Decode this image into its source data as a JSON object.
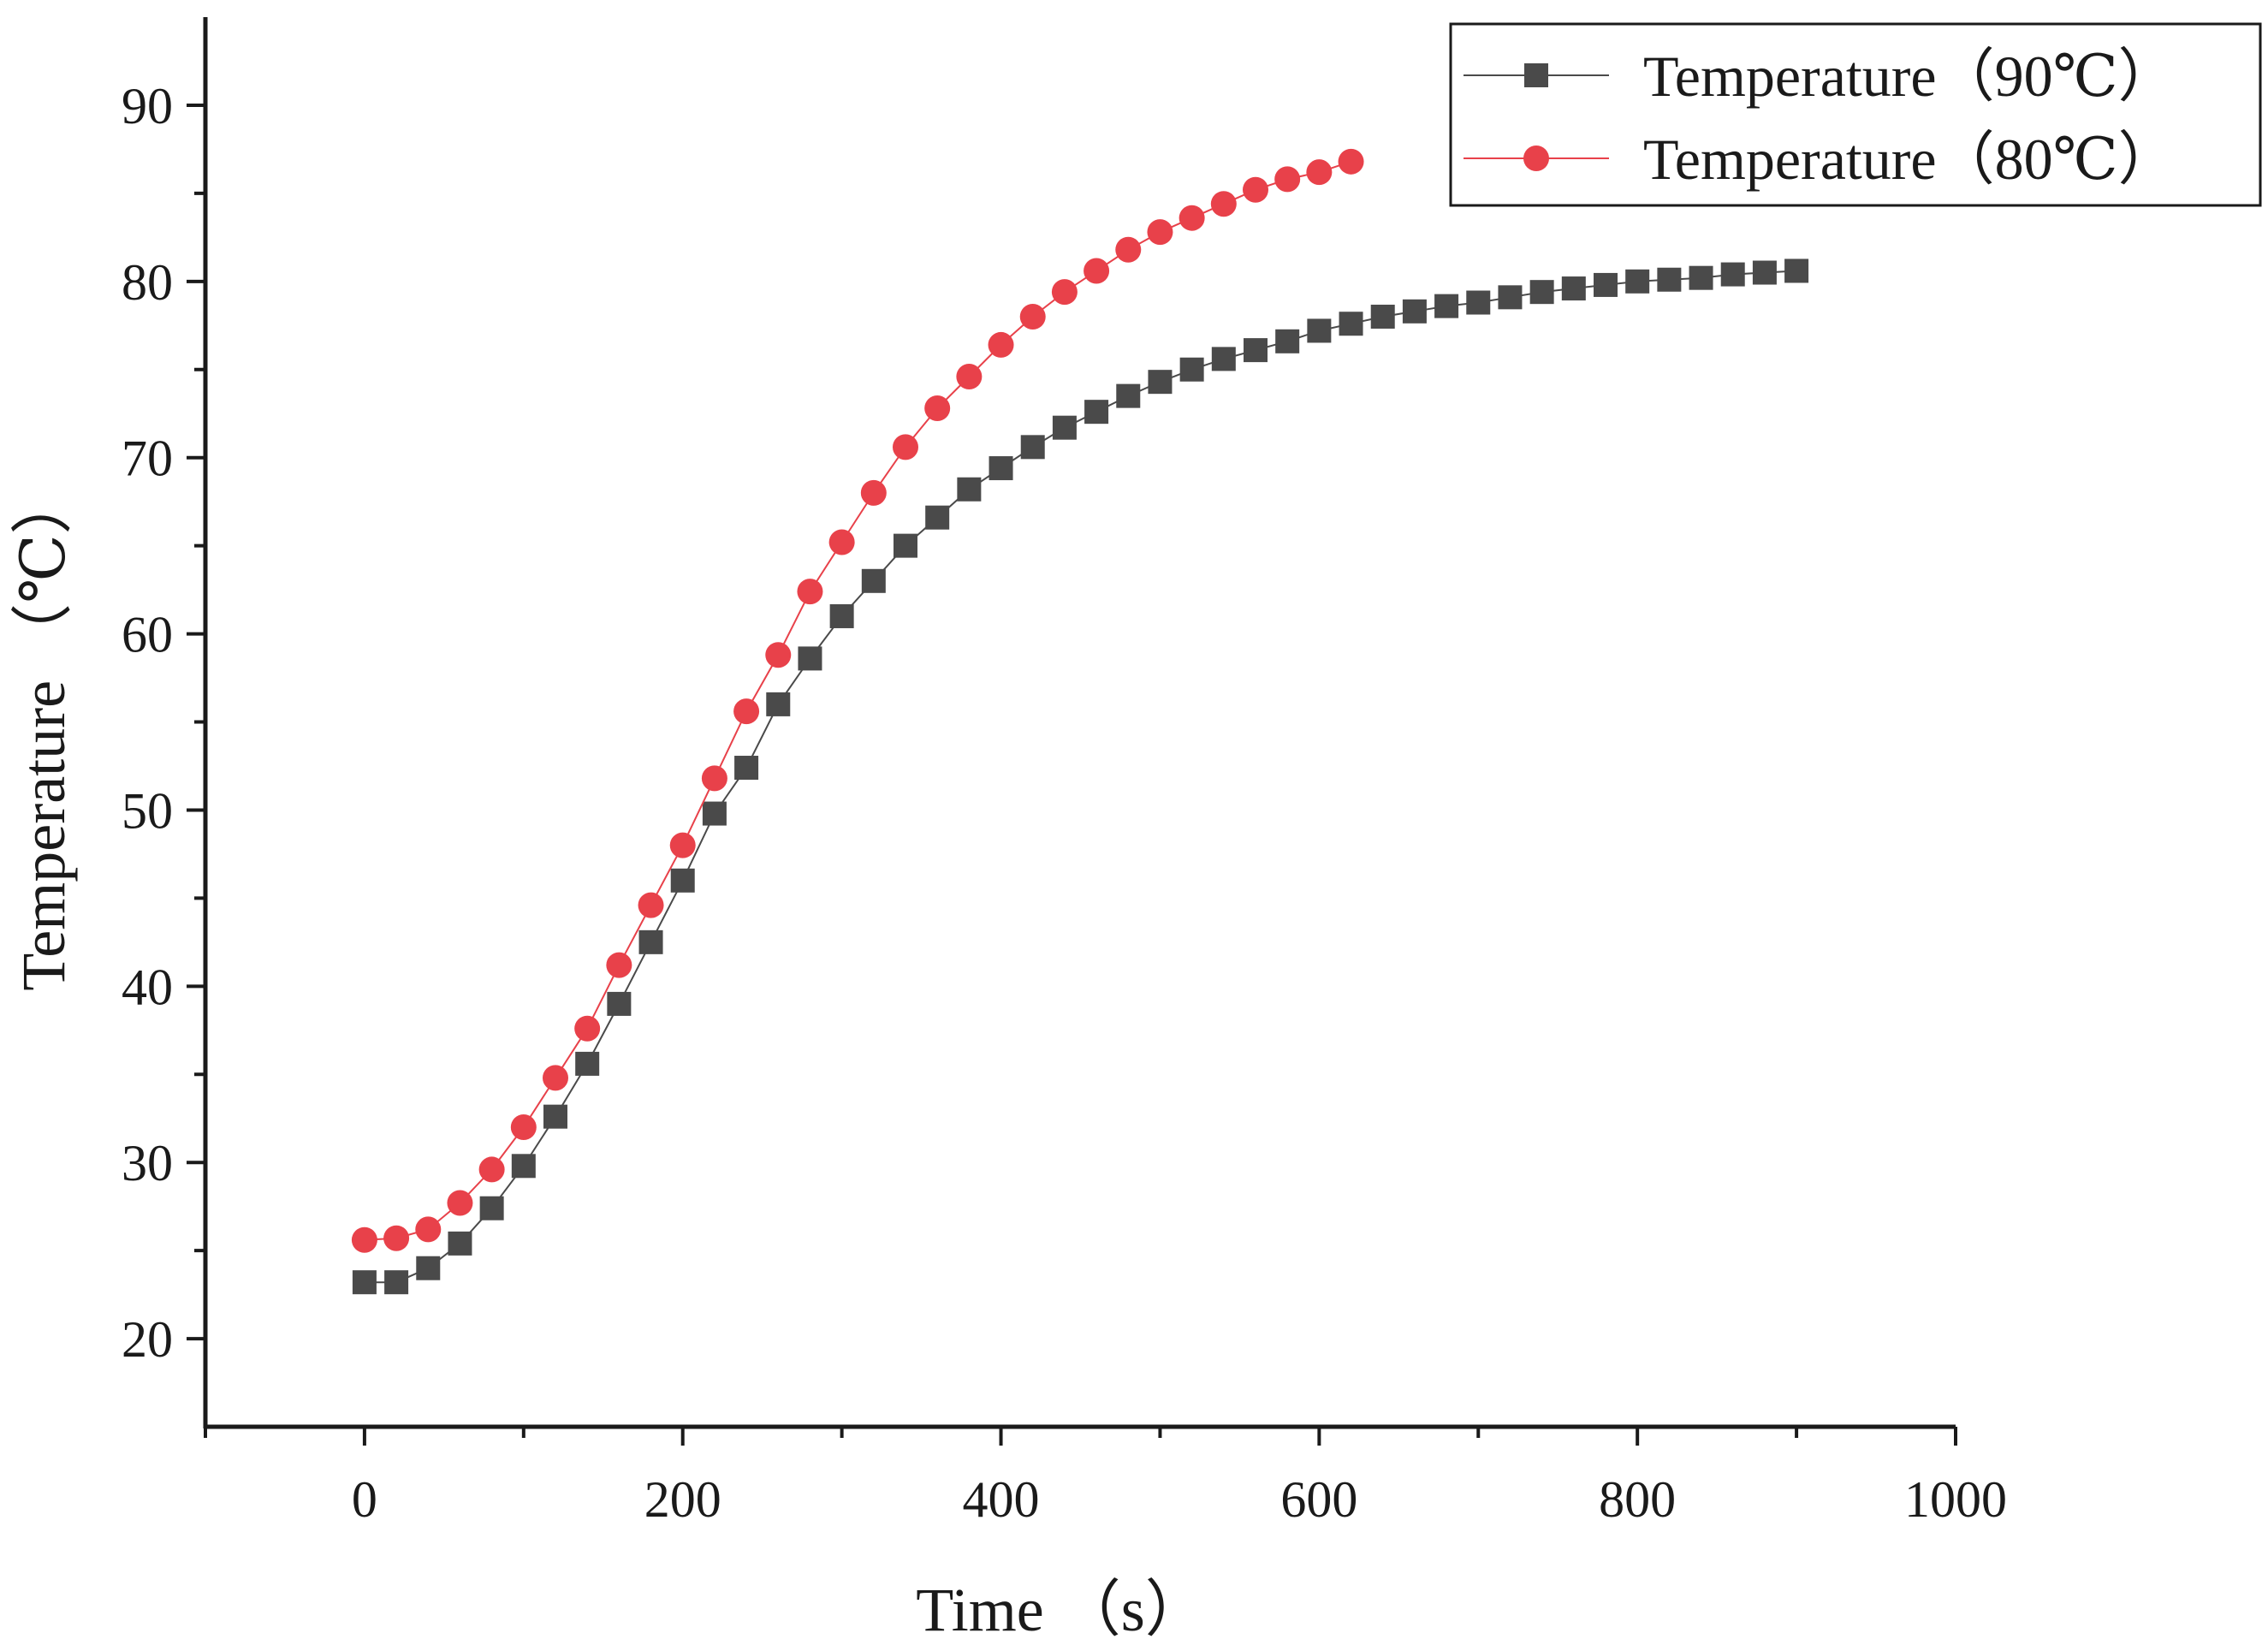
{
  "chart_data": {
    "type": "line",
    "title": "",
    "xlabel": "Time （s）",
    "ylabel": "Temperature （℃）",
    "xlim": [
      -100,
      1000
    ],
    "ylim": [
      15,
      95
    ],
    "x_ticks": [
      0,
      200,
      400,
      600,
      800,
      1000
    ],
    "y_ticks": [
      20,
      30,
      40,
      50,
      60,
      70,
      80,
      90
    ],
    "grid": false,
    "legend_position": "top-right",
    "series": [
      {
        "name": "Temperature（90℃）",
        "marker": "square",
        "color": "#4a4a4a",
        "x": [
          0,
          20,
          40,
          60,
          80,
          100,
          120,
          140,
          160,
          180,
          200,
          220,
          240,
          260,
          280,
          300,
          320,
          340,
          360,
          380,
          400,
          420,
          440,
          460,
          480,
          500,
          520,
          540,
          560,
          580,
          600,
          620,
          640,
          660,
          680,
          700,
          720,
          740,
          760,
          780,
          800,
          820,
          840,
          860,
          880,
          900
        ],
        "y": [
          23.2,
          23.2,
          24.0,
          25.4,
          27.4,
          29.8,
          32.6,
          35.6,
          39.0,
          42.5,
          46.0,
          49.8,
          52.4,
          56.0,
          58.6,
          61.0,
          63.0,
          65.0,
          66.6,
          68.2,
          69.4,
          70.6,
          71.7,
          72.6,
          73.5,
          74.3,
          75.0,
          75.6,
          76.1,
          76.6,
          77.2,
          77.6,
          78.0,
          78.3,
          78.6,
          78.8,
          79.1,
          79.4,
          79.6,
          79.8,
          80.0,
          80.1,
          80.2,
          80.4,
          80.5,
          80.6
        ]
      },
      {
        "name": "Temperature（80℃）",
        "marker": "circle",
        "color": "#e8414a",
        "x": [
          0,
          20,
          40,
          60,
          80,
          100,
          120,
          140,
          160,
          180,
          200,
          220,
          240,
          260,
          280,
          300,
          320,
          340,
          360,
          380,
          400,
          420,
          440,
          460,
          480,
          500,
          520,
          540,
          560,
          580,
          600,
          620
        ],
        "y": [
          25.6,
          25.7,
          26.2,
          27.7,
          29.6,
          32.0,
          34.8,
          37.6,
          41.2,
          44.6,
          48.0,
          51.8,
          55.6,
          58.8,
          62.4,
          65.2,
          68.0,
          70.6,
          72.8,
          74.6,
          76.4,
          78.0,
          79.4,
          80.6,
          81.8,
          82.8,
          83.6,
          84.4,
          85.2,
          85.8,
          86.2,
          86.8
        ]
      }
    ]
  }
}
